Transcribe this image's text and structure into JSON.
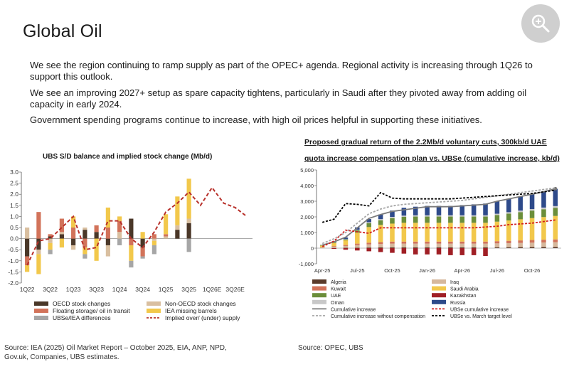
{
  "page": {
    "title": "Global Oil",
    "paragraphs": [
      "We see the region continuing to ramp supply as part of the OPEC+ agenda. Regional activity is increasing through 1Q26 to support this outlook.",
      "We see an improving 2027+ setup as spare capacity tightens, particularly in Saudi after they pivoted away from adding oil capacity in early 2024.",
      "Government spending programs continue to increase, with high oil prices helpful in supporting these initiatives."
    ],
    "source_left": "Source: IEA (2025) Oil Market Report – October 2025, EIA, ANP, NPD, Gov.uk, Companies, UBS estimates.",
    "source_right": "Source: OPEC, UBS",
    "zoom_icon": "zoom-in-icon"
  },
  "chart_data": [
    {
      "type": "bar",
      "stacked": true,
      "title": "UBS S/D balance and implied stock change (Mb/d)",
      "ylim": [
        -2.0,
        3.0
      ],
      "yticks": [
        "3.0",
        "2.5",
        "2.0",
        "1.5",
        "1.0",
        "0.5",
        "0.0",
        "-0.5",
        "-1.0",
        "-1.5",
        "-2.0"
      ],
      "xtick_labels": [
        "1Q22",
        "3Q22",
        "1Q23",
        "3Q23",
        "1Q24",
        "3Q24",
        "1Q25",
        "3Q25",
        "1Q26E",
        "3Q26E"
      ],
      "categories": [
        "1Q22",
        "2Q22",
        "3Q22",
        "4Q22",
        "1Q23",
        "2Q23",
        "3Q23",
        "4Q23",
        "1Q24",
        "2Q24",
        "3Q24",
        "4Q24",
        "1Q25",
        "2Q25",
        "3Q25",
        "4Q25",
        "1Q26E",
        "2Q26E",
        "3Q26E",
        "4Q26E"
      ],
      "series": [
        {
          "name": "OECD stock changes",
          "color": "#4a3728",
          "values": [
            -0.8,
            -0.5,
            0.1,
            0.2,
            -0.3,
            0.4,
            0.3,
            -0.3,
            0.0,
            0.9,
            -0.4,
            0.0,
            0.0,
            0.4,
            0.7,
            null,
            null,
            null,
            null,
            null
          ]
        },
        {
          "name": "Non-OECD stock changes",
          "color": "#d9bfa0",
          "values": [
            0.5,
            -0.2,
            -0.2,
            0.1,
            -0.2,
            0.1,
            0.0,
            -0.5,
            0.3,
            0.0,
            0.0,
            -0.1,
            0.1,
            0.2,
            0.2,
            null,
            null,
            null,
            null,
            null
          ]
        },
        {
          "name": "Floating storage/ oil in transit",
          "color": "#d2735a",
          "values": [
            -0.4,
            1.2,
            0.1,
            0.6,
            0.5,
            -0.4,
            0.3,
            0.5,
            0.5,
            -0.3,
            -0.4,
            0.2,
            0.1,
            0.0,
            0.0,
            null,
            null,
            null,
            null,
            null
          ]
        },
        {
          "name": "IEA missing barrels",
          "color": "#f2c84b",
          "values": [
            -0.3,
            -0.9,
            -0.3,
            -0.4,
            0.5,
            -0.3,
            -1.0,
            0.9,
            0.2,
            -0.7,
            0.3,
            -0.2,
            0.9,
            1.3,
            1.8,
            null,
            null,
            null,
            null,
            null
          ]
        },
        {
          "name": "UBSe/IEA differences",
          "color": "#a6a6a6",
          "values": [
            0.0,
            0.0,
            -0.2,
            0.0,
            0.0,
            -0.2,
            0.0,
            0.0,
            -0.3,
            -0.3,
            -0.1,
            -0.4,
            0.0,
            0.0,
            -0.6,
            null,
            null,
            null,
            null,
            null
          ]
        }
      ],
      "line": {
        "name": "Implied over/ (under) supply",
        "color": "#b8302a",
        "values": [
          -1.2,
          -0.1,
          0.0,
          0.5,
          1.0,
          -0.5,
          -0.4,
          0.8,
          0.8,
          0.0,
          -0.4,
          0.3,
          1.2,
          1.6,
          2.1,
          1.5,
          2.3,
          1.6,
          1.4,
          1.0
        ]
      },
      "legend": [
        "OECD stock changes",
        "Non-OECD stock changes",
        "Floating storage/ oil in transit",
        "IEA missing barrels",
        "UBSe/IEA differences",
        "Implied over/ (under) supply"
      ]
    },
    {
      "type": "bar",
      "stacked": true,
      "title": "Proposed gradual return of the 2.2Mb/d voluntary cuts, 300kb/d UAE quota increase compensation plan vs. UBSe (cumulative increase, kb/d)",
      "ylim": [
        -1000,
        5000
      ],
      "yticks": [
        "5,000",
        "4,000",
        "3,000",
        "2,000",
        "1,000",
        "0",
        "-1,000"
      ],
      "xtick_labels": [
        "Apr-25",
        "Jul-25",
        "Oct-25",
        "Jan-26",
        "Apr-26",
        "Jul-26",
        "Oct-26"
      ],
      "categories": [
        "Apr-25",
        "May-25",
        "Jun-25",
        "Jul-25",
        "Aug-25",
        "Sep-25",
        "Oct-25",
        "Nov-25",
        "Dec-25",
        "Jan-26",
        "Feb-26",
        "Mar-26",
        "Apr-26",
        "May-26",
        "Jun-26",
        "Jul-26",
        "Aug-26",
        "Sep-26",
        "Oct-26",
        "Nov-26",
        "Dec-26"
      ],
      "series": [
        {
          "name": "Algeria",
          "color": "#5a3a2a",
          "values": [
            5,
            10,
            20,
            30,
            40,
            45,
            50,
            50,
            50,
            50,
            50,
            50,
            50,
            50,
            50,
            55,
            60,
            65,
            70,
            75,
            80
          ]
        },
        {
          "name": "Iraq",
          "color": "#d6b89c",
          "values": [
            40,
            80,
            120,
            170,
            200,
            220,
            240,
            240,
            240,
            240,
            240,
            240,
            240,
            240,
            240,
            250,
            260,
            270,
            280,
            290,
            300
          ]
        },
        {
          "name": "Kuwait",
          "color": "#d2735a",
          "values": [
            20,
            40,
            60,
            90,
            110,
            120,
            130,
            130,
            130,
            130,
            130,
            130,
            130,
            130,
            130,
            140,
            150,
            160,
            170,
            175,
            180
          ]
        },
        {
          "name": "Saudi Arabia",
          "color": "#f2c84b",
          "values": [
            100,
            200,
            300,
            700,
            1000,
            1100,
            1150,
            1200,
            1200,
            1200,
            1200,
            1200,
            1200,
            1200,
            1200,
            1250,
            1300,
            1350,
            1400,
            1450,
            1500
          ]
        },
        {
          "name": "UAE",
          "color": "#6b8e3a",
          "values": [
            20,
            40,
            60,
            150,
            250,
            300,
            350,
            380,
            400,
            400,
            400,
            400,
            400,
            400,
            400,
            420,
            440,
            460,
            480,
            500,
            520
          ]
        },
        {
          "name": "Kazakhstan",
          "color": "#a01f25",
          "values": [
            0,
            -50,
            -100,
            -150,
            -200,
            -250,
            -300,
            -350,
            -400,
            -400,
            -400,
            -450,
            -450,
            -450,
            -500,
            0,
            0,
            0,
            0,
            0,
            0
          ]
        },
        {
          "name": "Oman",
          "color": "#c8c8c8",
          "values": [
            5,
            10,
            20,
            40,
            60,
            70,
            80,
            80,
            80,
            80,
            80,
            80,
            80,
            80,
            80,
            85,
            90,
            95,
            100,
            105,
            110
          ]
        },
        {
          "name": "Russia",
          "color": "#2e4a8a",
          "values": [
            20,
            50,
            100,
            150,
            200,
            300,
            400,
            500,
            550,
            600,
            600,
            600,
            650,
            700,
            750,
            800,
            850,
            900,
            950,
            1000,
            1100
          ]
        }
      ],
      "lines": [
        {
          "name": "Cumulative increase",
          "color": "#7a7a7a",
          "style": "solid",
          "values": [
            200,
            400,
            700,
            1300,
            1900,
            2150,
            2350,
            2450,
            2550,
            2650,
            2650,
            2650,
            2700,
            2750,
            2800,
            3000,
            3150,
            3300,
            3450,
            3600,
            3800
          ]
        },
        {
          "name": "UBSe cumulative increase",
          "color": "#d11f1f",
          "style": "dashed",
          "values": [
            100,
            450,
            1150,
            1050,
            950,
            1300,
            1300,
            1300,
            1300,
            1300,
            1300,
            1300,
            1300,
            1300,
            1350,
            1400,
            1500,
            1550,
            1600,
            1700,
            1800
          ]
        },
        {
          "name": "Cumulative increase without compensation",
          "color": "#a6a6a6",
          "style": "dashed",
          "values": [
            300,
            600,
            1000,
            1600,
            2200,
            2500,
            2700,
            2800,
            2850,
            2900,
            2950,
            3000,
            3050,
            3150,
            3250,
            3350,
            3450,
            3550,
            3650,
            3750,
            3850
          ]
        },
        {
          "name": "UBSe vs. March target level",
          "color": "#000000",
          "style": "dashed",
          "values": [
            1650,
            1850,
            2850,
            2800,
            2700,
            3550,
            3200,
            3150,
            3150,
            3150,
            3150,
            3150,
            3200,
            3250,
            3300,
            3350,
            3400,
            3450,
            3500,
            3600,
            3700
          ]
        }
      ],
      "legend": [
        "Algeria",
        "Iraq",
        "Kuwait",
        "Saudi Arabia",
        "UAE",
        "Kazakhstan",
        "Oman",
        "Russia",
        "Cumulative increase",
        "UBSe cumulative increase",
        "Cumulative increase without compensation",
        "UBSe vs. March target level"
      ]
    }
  ]
}
